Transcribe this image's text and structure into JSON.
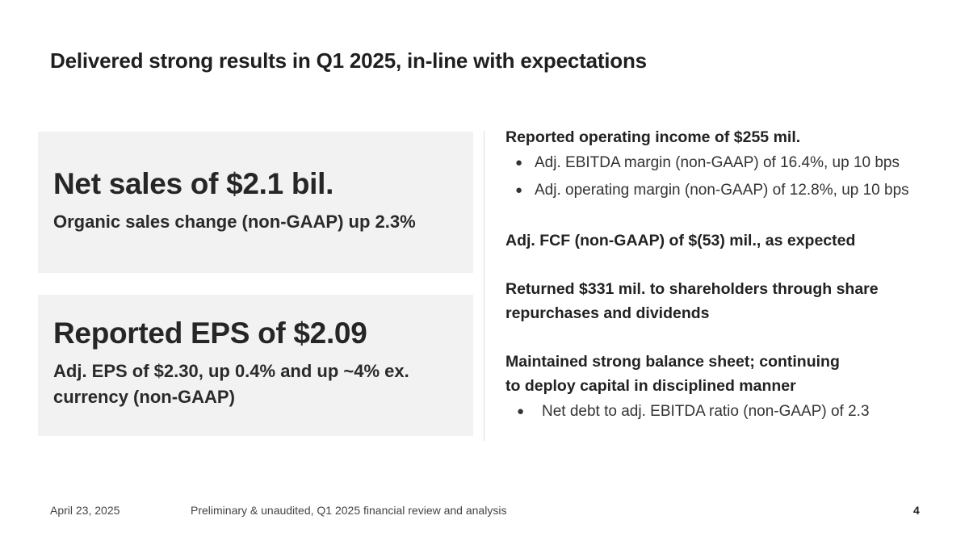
{
  "slide": {
    "title": "Delivered strong results in Q1 2025, in-line with expectations"
  },
  "cards": [
    {
      "heading": "Net sales of $2.1 bil.",
      "sub": "Organic sales change (non-GAAP) up 2.3%"
    },
    {
      "heading": "Reported EPS of $2.09",
      "sub": "Adj. EPS of $2.30, up 0.4% and up ~4% ex. currency (non-GAAP)"
    }
  ],
  "highlights": {
    "operating_income": {
      "heading": "Reported operating income of $255 mil.",
      "bullets": [
        "Adj. EBITDA margin (non-GAAP) of 16.4%, up 10 bps",
        "Adj. operating margin (non-GAAP) of 12.8%, up 10 bps"
      ]
    },
    "fcf": {
      "heading": "Adj. FCF (non-GAAP) of $(53) mil., as expected"
    },
    "returns": {
      "line1": "Returned $331 mil. to shareholders through share",
      "line2": "repurchases and dividends"
    },
    "balance_sheet": {
      "line1": "Maintained strong balance sheet; continuing",
      "line2": "to deploy capital in disciplined manner",
      "bullets": [
        "Net debt to adj. EBITDA ratio (non-GAAP) of 2.3"
      ]
    },
    "bullet_glyph": "●"
  },
  "footer": {
    "date": "April 23, 2025",
    "note": "Preliminary & unaudited, Q1 2025 financial review and analysis",
    "page_number": "4"
  }
}
